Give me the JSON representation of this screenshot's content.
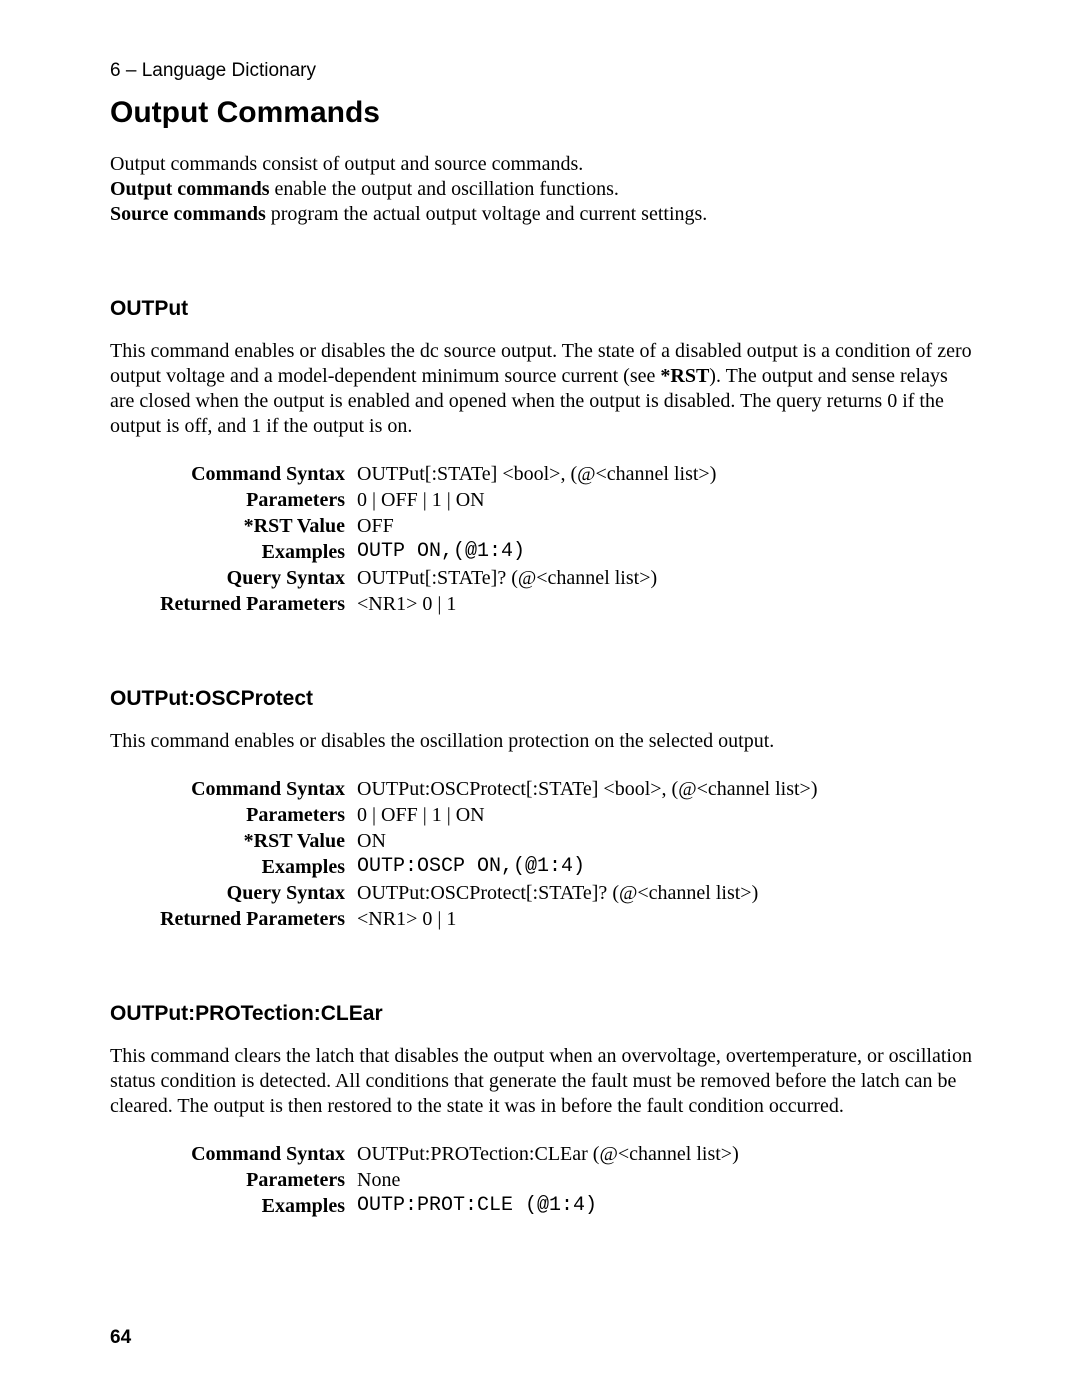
{
  "header": "6 – Language Dictionary",
  "main_heading": "Output Commands",
  "intro": {
    "line1": "Output commands consist of output and source commands.",
    "line2a": "Output commands",
    "line2b": " enable the output and oscillation functions.",
    "line3a": "Source commands",
    "line3b": " program the actual output voltage and current settings."
  },
  "section1": {
    "heading": "OUTPut",
    "desc_a": "This command enables or disables the dc source output. The state of a disabled output is a condition of zero output voltage and a model-dependent minimum source current (see ",
    "desc_rst": "*RST",
    "desc_b": "). The output and sense relays are closed when the output is enabled and opened when the output is disabled. The query returns 0 if the output is off, and 1 if the output is on.",
    "rows": {
      "cmd_syntax_label": "Command Syntax",
      "cmd_syntax_value": "OUTPut[:STATe] <bool>, (@<channel list>)",
      "params_label": "Parameters",
      "params_value": "0 | OFF | 1 | ON",
      "rst_label": "*RST Value",
      "rst_value": "OFF",
      "examples_label": "Examples",
      "examples_value": "OUTP ON,(@1:4)",
      "query_label": "Query Syntax",
      "query_value": "OUTPut[:STATe]?  (@<channel list>)",
      "ret_label": "Returned Parameters",
      "ret_value": "<NR1> 0 | 1"
    }
  },
  "section2": {
    "heading": "OUTPut:OSCProtect",
    "desc": "This command enables or disables the oscillation protection on the selected output.",
    "rows": {
      "cmd_syntax_label": "Command Syntax",
      "cmd_syntax_value": "OUTPut:OSCProtect[:STATe] <bool>, (@<channel list>)",
      "params_label": "Parameters",
      "params_value": "0 | OFF | 1 |  ON",
      "rst_label": "*RST Value",
      "rst_value": "ON",
      "examples_label": "Examples",
      "examples_value": "OUTP:OSCP ON,(@1:4)",
      "query_label": "Query Syntax",
      "query_value": "OUTPut:OSCProtect[:STATe]?  (@<channel list>)",
      "ret_label": "Returned Parameters",
      "ret_value": "<NR1> 0 | 1"
    }
  },
  "section3": {
    "heading": "OUTPut:PROTection:CLEar",
    "desc": "This command clears the latch that disables the output when an overvoltage, overtemperature, or oscillation status condition is detected. All conditions that generate the fault must be removed before the latch can be cleared. The output is then restored to the state it was in before the fault condition occurred.",
    "rows": {
      "cmd_syntax_label": "Command Syntax",
      "cmd_syntax_value": "OUTPut:PROTection:CLEar (@<channel list>)",
      "params_label": "Parameters",
      "params_value": "None",
      "examples_label": "Examples",
      "examples_value": "OUTP:PROT:CLE (@1:4)"
    }
  },
  "page_number": "64"
}
